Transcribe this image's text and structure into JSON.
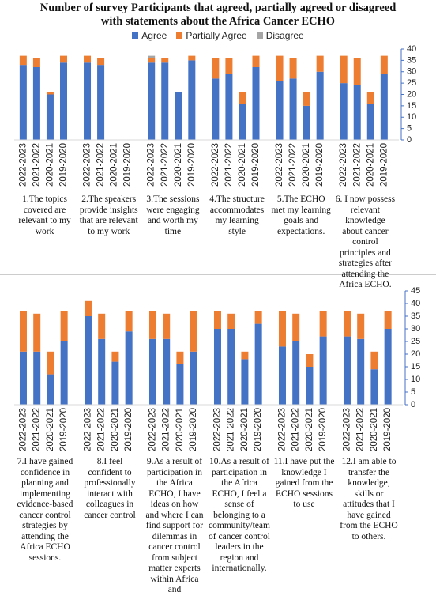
{
  "chart_data": [
    {
      "type": "bar",
      "stacked": true,
      "title": "Number of survey Participants that agreed, partially agreed or disagreed with statements about the Africa Cancer ECHO",
      "categories": [
        "2022-2023",
        "2021-2022",
        "2020-2021",
        "2019-2020",
        "2022-2023",
        "2021-2022",
        "2020-2021",
        "2019-2020",
        "2022-2023",
        "2021-2022",
        "2020-2021",
        "2019-2020",
        "2022-2023",
        "2021-2022",
        "2020-2021",
        "2019-2020",
        "2022-2023",
        "2021-2022",
        "2020-2021",
        "2019-2020",
        "2022-2023",
        "2021-2022",
        "2020-2021",
        "2019-2020"
      ],
      "groups": [
        "1.The topics covered are relevant to my work",
        "2.The speakers provide insights that are relevant to my work",
        "3.The sessions were engaging and worth my time",
        "4.The structure accommodates my learning style",
        "5.The ECHO met my learning goals and expectations.",
        "6. I now possess relevant knowledge about cancer control principles and strategies after attending the Africa ECHO."
      ],
      "series": [
        {
          "name": "Agree",
          "color": "#4472c4",
          "values": [
            33,
            32,
            20,
            34,
            34,
            33,
            0,
            0,
            34,
            34,
            21,
            35,
            27,
            29,
            16,
            32,
            26,
            27,
            15,
            30,
            25,
            24,
            16,
            29
          ]
        },
        {
          "name": "Partially Agree",
          "color": "#ed7d31",
          "values": [
            4,
            4,
            1,
            3,
            3,
            3,
            0,
            0,
            2,
            2,
            0,
            2,
            9,
            7,
            5,
            5,
            11,
            9,
            6,
            7,
            12,
            12,
            5,
            8
          ]
        },
        {
          "name": "Disagree",
          "color": "#a5a5a5",
          "values": [
            0,
            0,
            0,
            0,
            0,
            0,
            0,
            0,
            1,
            0,
            0,
            0,
            0,
            0,
            0,
            0,
            0,
            0,
            0,
            0,
            0,
            0,
            0,
            0
          ]
        }
      ],
      "ylim": [
        0,
        40
      ],
      "yticks": [
        0,
        5,
        10,
        15,
        20,
        25,
        30,
        35,
        40
      ],
      "axis_side": "right"
    },
    {
      "type": "bar",
      "stacked": true,
      "categories": [
        "2022-2023",
        "2021-2022",
        "2020-2021",
        "2019-2020",
        "2022-2023",
        "2021-2022",
        "2020-2021",
        "2019-2020",
        "2022-2023",
        "2021-2022",
        "2020-2021",
        "2019-2020",
        "2022-2023",
        "2021-2022",
        "2020-2021",
        "2019-2020",
        "2022-2023",
        "2021-2022",
        "2020-2021",
        "2019-2020",
        "2022-2023",
        "2021-2022",
        "2020-2021",
        "2019-2020"
      ],
      "groups": [
        "7.I have gained confidence in planning and implementing evidence-based cancer control strategies by attending the Africa ECHO sessions.",
        "8.I feel confident to professionally interact with colleagues in cancer control",
        "9.As a result of participation in the Africa ECHO,  I have ideas on how and where I can find support for dilemmas in cancer control from subject matter experts within Africa and",
        "10.As a result of participation in the Africa ECHO,  I feel a sense of belonging to a community/team of cancer control leaders in the region and internationally.",
        "11.I have put the knowledge I gained from the ECHO sessions to use",
        "12.I am able to transfer the knowledge,  skills or attitudes that I have gained from the ECHO to others."
      ],
      "series": [
        {
          "color": "#4472c4",
          "values": [
            21,
            21,
            12,
            25,
            35,
            26,
            17,
            29,
            26,
            26,
            16,
            21,
            30,
            30,
            18,
            32,
            23,
            25,
            15,
            27,
            27,
            26,
            14,
            30
          ]
        },
        {
          "color": "#ed7d31",
          "values": [
            16,
            15,
            9,
            12,
            6,
            10,
            4,
            8,
            11,
            10,
            5,
            16,
            7,
            6,
            3,
            5,
            14,
            11,
            5,
            10,
            10,
            10,
            7,
            7
          ]
        }
      ],
      "ylim": [
        0,
        45
      ],
      "yticks": [
        0,
        5,
        10,
        15,
        20,
        25,
        30,
        35,
        40,
        45
      ],
      "axis_side": "right"
    }
  ]
}
